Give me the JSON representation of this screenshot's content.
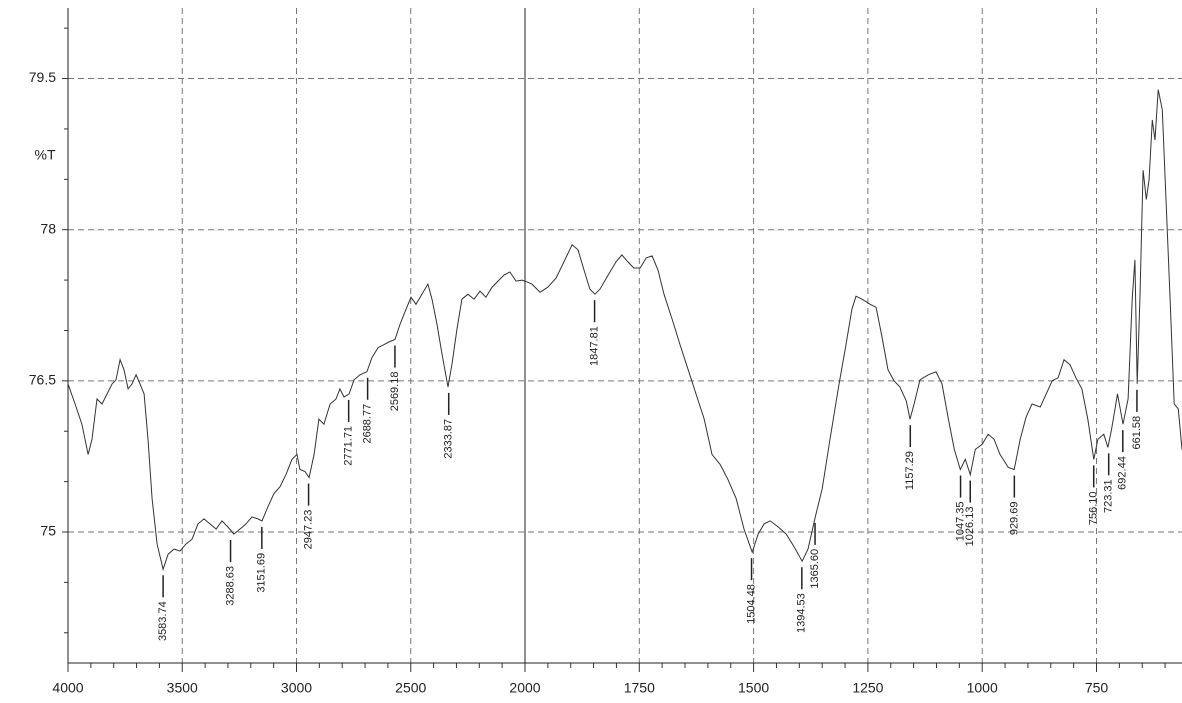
{
  "chart_data": {
    "type": "line",
    "y_label": "%T",
    "color": "#333333",
    "grid": true,
    "xlim": [
      4000,
      563
    ],
    "x_break": 2000,
    "ylim": [
      73.7,
      80.2
    ],
    "xticks": [
      4000,
      3500,
      3000,
      2500,
      2000,
      1750,
      1500,
      1250,
      1000,
      750
    ],
    "xminorticks": [
      3900,
      3800,
      3700,
      3600,
      3400,
      3300,
      3200,
      3100,
      2900,
      2800,
      2700,
      2600,
      2400,
      2300,
      2200,
      2100,
      1950,
      1900,
      1850,
      1800,
      1700,
      1650,
      1600,
      1550,
      1450,
      1400,
      1350,
      1300,
      1200,
      1150,
      1100,
      1050,
      950,
      900,
      850,
      800,
      700,
      650,
      600
    ],
    "yticks": [
      75,
      76.5,
      78,
      79.5
    ],
    "yminorticks": [
      74,
      74.5,
      75.5,
      76,
      77,
      77.5,
      78.5,
      79,
      80
    ],
    "x": [
      4000,
      3969,
      3939,
      3912,
      3895,
      3873,
      3851,
      3829,
      3807,
      3790,
      3772,
      3755,
      3737,
      3720,
      3702,
      3685,
      3667,
      3650,
      3632,
      3610,
      3584,
      3562,
      3536,
      3510,
      3484,
      3457,
      3431,
      3405,
      3379,
      3352,
      3326,
      3300,
      3274,
      3247,
      3221,
      3195,
      3169,
      3151,
      3125,
      3099,
      3072,
      3046,
      3020,
      2998,
      2985,
      2963,
      2945,
      2923,
      2902,
      2880,
      2853,
      2827,
      2810,
      2792,
      2770,
      2748,
      2722,
      2692,
      2670,
      2643,
      2617,
      2591,
      2569,
      2547,
      2521,
      2499,
      2477,
      2451,
      2425,
      2407,
      2385,
      2363,
      2337,
      2320,
      2298,
      2276,
      2250,
      2223,
      2197,
      2171,
      2144,
      2118,
      2092,
      2066,
      2039,
      2013,
      2000,
      1985,
      1967,
      1950,
      1932,
      1915,
      1897,
      1884,
      1871,
      1858,
      1847,
      1836,
      1818,
      1801,
      1788,
      1775,
      1762,
      1748,
      1735,
      1722,
      1709,
      1696,
      1678,
      1661,
      1643,
      1626,
      1608,
      1591,
      1573,
      1556,
      1538,
      1521,
      1503,
      1490,
      1477,
      1464,
      1446,
      1429,
      1411,
      1394,
      1381,
      1365,
      1350,
      1333,
      1315,
      1298,
      1285,
      1276,
      1263,
      1245,
      1232,
      1219,
      1206,
      1193,
      1180,
      1166,
      1158,
      1149,
      1136,
      1118,
      1101,
      1088,
      1074,
      1061,
      1048,
      1037,
      1026,
      1015,
      1000,
      987,
      974,
      961,
      943,
      930,
      917,
      904,
      891,
      873,
      860,
      847,
      834,
      821,
      808,
      795,
      782,
      769,
      756,
      747,
      734,
      725,
      717,
      704,
      692,
      681,
      672,
      666,
      661,
      655,
      648,
      641,
      635,
      628,
      622,
      615,
      606,
      598,
      589,
      580,
      571,
      563
    ],
    "values": [
      76.47,
      76.27,
      76.07,
      75.77,
      75.92,
      76.32,
      76.27,
      76.37,
      76.47,
      76.51,
      76.71,
      76.61,
      76.42,
      76.47,
      76.56,
      76.47,
      76.37,
      75.92,
      75.33,
      74.88,
      74.63,
      74.78,
      74.83,
      74.81,
      74.88,
      74.93,
      75.08,
      75.13,
      75.08,
      75.03,
      75.11,
      75.05,
      74.98,
      75.03,
      75.08,
      75.15,
      75.13,
      75.11,
      75.25,
      75.38,
      75.45,
      75.57,
      75.72,
      75.77,
      75.62,
      75.6,
      75.54,
      75.77,
      76.12,
      76.07,
      76.27,
      76.32,
      76.42,
      76.34,
      76.37,
      76.51,
      76.56,
      76.59,
      76.73,
      76.83,
      76.86,
      76.89,
      76.91,
      77.06,
      77.21,
      77.33,
      77.26,
      77.36,
      77.46,
      77.31,
      77.06,
      76.76,
      76.44,
      76.66,
      77.01,
      77.31,
      77.36,
      77.31,
      77.39,
      77.33,
      77.43,
      77.49,
      77.55,
      77.58,
      77.49,
      77.5,
      77.49,
      77.46,
      77.38,
      77.43,
      77.52,
      77.68,
      77.85,
      77.8,
      77.6,
      77.41,
      77.36,
      77.41,
      77.55,
      77.68,
      77.75,
      77.68,
      77.62,
      77.62,
      77.72,
      77.74,
      77.6,
      77.36,
      77.11,
      76.86,
      76.61,
      76.37,
      76.12,
      75.77,
      75.67,
      75.52,
      75.33,
      75.03,
      74.8,
      74.98,
      75.08,
      75.11,
      75.05,
      74.98,
      74.85,
      74.71,
      74.83,
      75.15,
      75.43,
      75.92,
      76.42,
      76.86,
      77.21,
      77.34,
      77.31,
      77.26,
      77.23,
      76.93,
      76.61,
      76.5,
      76.44,
      76.3,
      76.12,
      76.27,
      76.51,
      76.56,
      76.59,
      76.47,
      76.12,
      75.82,
      75.62,
      75.72,
      75.57,
      75.82,
      75.87,
      75.97,
      75.92,
      75.77,
      75.64,
      75.62,
      75.92,
      76.14,
      76.27,
      76.24,
      76.37,
      76.5,
      76.53,
      76.71,
      76.66,
      76.53,
      76.42,
      76.12,
      75.72,
      75.92,
      75.97,
      75.84,
      76.02,
      76.37,
      76.07,
      76.32,
      77.31,
      77.7,
      76.47,
      77.31,
      78.59,
      78.3,
      78.5,
      79.09,
      78.89,
      79.39,
      79.19,
      78.3,
      77.31,
      76.27,
      76.22,
      75.82
    ],
    "peaks": {
      "x": [
        3583.74,
        3288.63,
        3151.69,
        2947.23,
        2771.71,
        2688.77,
        2569.18,
        2333.87,
        1847.81,
        1504.48,
        1394.53,
        1365.6,
        1157.29,
        1047.35,
        1026.13,
        929.69,
        756.1,
        723.31,
        692.44,
        661.58
      ],
      "y": [
        74.63,
        74.98,
        75.11,
        75.54,
        76.37,
        76.59,
        76.91,
        76.44,
        77.36,
        74.8,
        74.71,
        75.15,
        76.12,
        75.62,
        75.57,
        75.62,
        75.72,
        75.84,
        76.07,
        76.47
      ],
      "labels": [
        "3583.74",
        "3288.63",
        "3151.69",
        "2947.23",
        "2771.71",
        "2688.77",
        "2569.18",
        "2333.87",
        "1847.81",
        "1504.48",
        "1394.53",
        "1365.60",
        "1157.29",
        "1047.35",
        "1026.13",
        "929.69",
        "756.10",
        "723.31",
        "692.44",
        "661.58"
      ]
    }
  }
}
